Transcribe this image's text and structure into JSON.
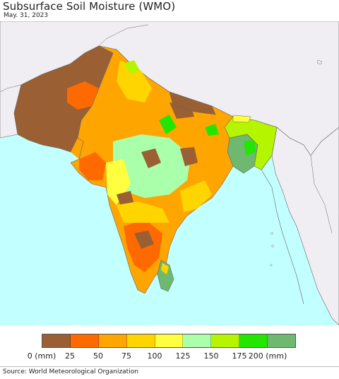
{
  "title": "Subsurface Soil Moisture (WMO)",
  "date": "May. 31, 2023",
  "legend": {
    "colors": [
      "#9a5f33",
      "#ff6a00",
      "#ffa500",
      "#ffd500",
      "#ffff40",
      "#aaffaa",
      "#b5f500",
      "#22e600",
      "#6fb86f"
    ],
    "labels": [
      "0 (mm)",
      "25",
      "50",
      "75",
      "100",
      "125",
      "150",
      "175",
      "200 (mm)"
    ]
  },
  "source": "Source: World Meteorological Organization",
  "colors": {
    "sea": "#c2ffff",
    "foreign_land": "#f0eef2",
    "border": "#666666"
  }
}
